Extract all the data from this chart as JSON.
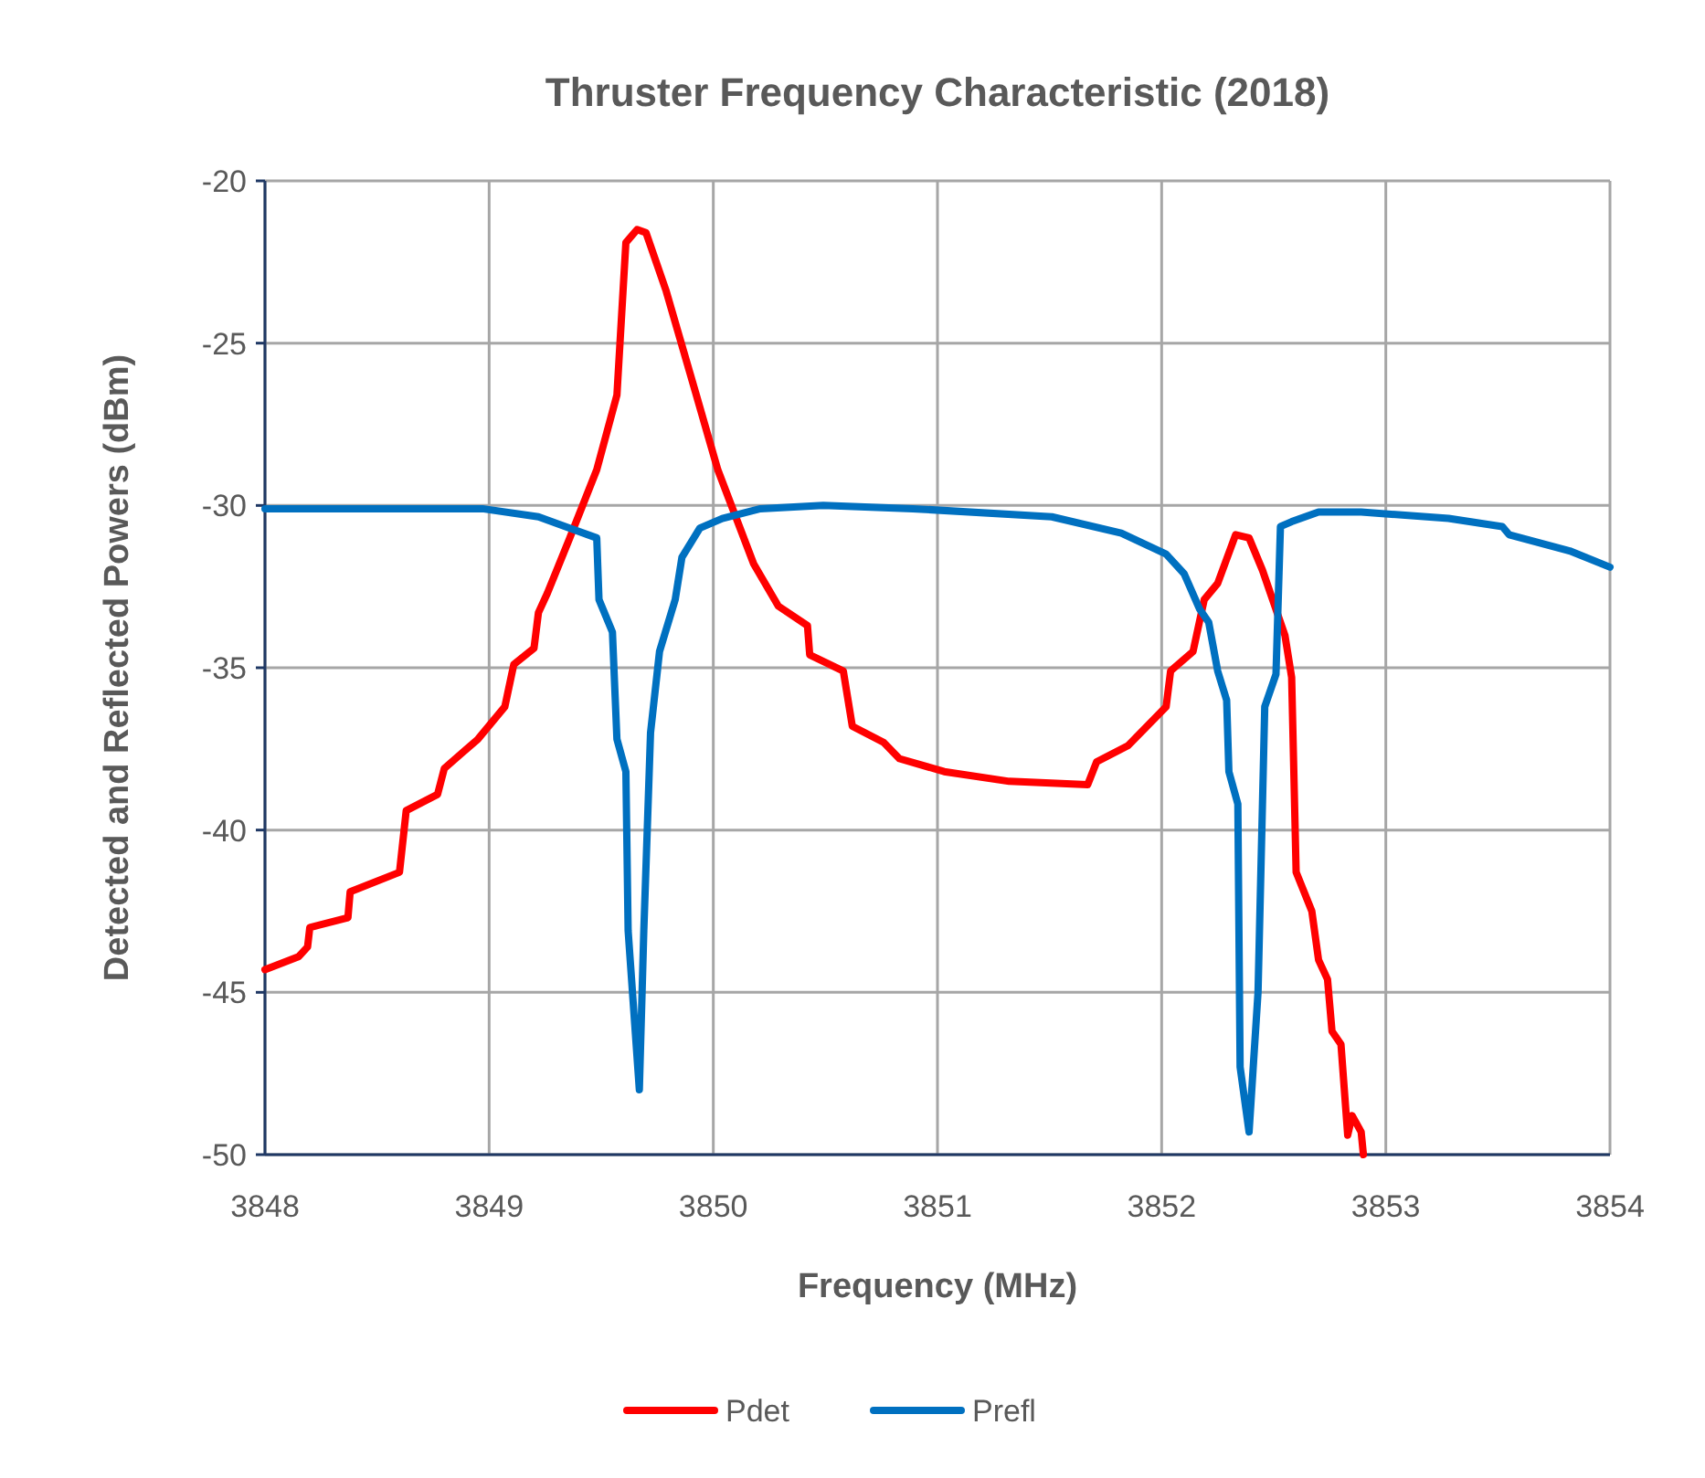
{
  "chart_data": {
    "type": "line",
    "title": "Thruster Frequency Characteristic (2018)",
    "xlabel": "Frequency (MHz)",
    "ylabel": "Detected and Reflected Powers (dBm)",
    "xlim": [
      3848,
      3854
    ],
    "xticks": [
      3848,
      3849,
      3850,
      3851,
      3852,
      3853,
      3854
    ],
    "ylim": [
      -50,
      -20
    ],
    "yticks": [
      -50,
      -45,
      -40,
      -35,
      -30,
      -25,
      -20
    ],
    "grid": true,
    "legend": "bottom",
    "marker": "none",
    "line_style": "solid",
    "series": [
      {
        "name": "Pdet",
        "color": "#ff0000",
        "x": [
          3848.0,
          3848.15,
          3848.19,
          3848.2,
          3848.37,
          3848.38,
          3848.6,
          3848.63,
          3848.77,
          3848.8,
          3848.95,
          3849.07,
          3849.11,
          3849.2,
          3849.22,
          3849.26,
          3849.36,
          3849.48,
          3849.57,
          3849.61,
          3849.66,
          3849.7,
          3849.79,
          3849.92,
          3850.02,
          3850.18,
          3850.29,
          3850.42,
          3850.43,
          3850.58,
          3850.62,
          3850.76,
          3850.83,
          3851.03,
          3851.32,
          3851.67,
          3851.71,
          3851.85,
          3852.02,
          3852.04,
          3852.14,
          3852.19,
          3852.25,
          3852.33,
          3852.39,
          3852.45,
          3852.55,
          3852.58,
          3852.6,
          3852.67,
          3852.7,
          3852.74,
          3852.76,
          3852.8,
          3852.83,
          3852.85,
          3852.89,
          3852.9
        ],
        "values": [
          -44.3,
          -43.9,
          -43.6,
          -43.0,
          -42.7,
          -41.9,
          -41.3,
          -39.4,
          -38.9,
          -38.1,
          -37.2,
          -36.2,
          -34.9,
          -34.4,
          -33.3,
          -32.7,
          -31.0,
          -28.9,
          -26.6,
          -21.9,
          -21.5,
          -21.6,
          -23.4,
          -26.5,
          -28.9,
          -31.8,
          -33.1,
          -33.7,
          -34.6,
          -35.1,
          -36.8,
          -37.3,
          -37.8,
          -38.2,
          -38.5,
          -38.6,
          -37.9,
          -37.4,
          -36.2,
          -35.1,
          -34.5,
          -32.9,
          -32.4,
          -30.9,
          -31.0,
          -32.0,
          -34.0,
          -35.3,
          -41.3,
          -42.5,
          -44.0,
          -44.6,
          -46.2,
          -46.6,
          -49.4,
          -48.8,
          -49.3,
          -50.0
        ]
      },
      {
        "name": "Prefl",
        "color": "#0070c0",
        "x": [
          3848.0,
          3848.97,
          3849.22,
          3849.36,
          3849.48,
          3849.49,
          3849.55,
          3849.57,
          3849.61,
          3849.62,
          3849.67,
          3849.69,
          3849.72,
          3849.76,
          3849.83,
          3849.86,
          3849.94,
          3850.04,
          3850.21,
          3850.49,
          3850.89,
          3851.51,
          3851.82,
          3852.02,
          3852.1,
          3852.17,
          3852.21,
          3852.25,
          3852.29,
          3852.3,
          3852.34,
          3852.35,
          3852.39,
          3852.43,
          3852.46,
          3852.51,
          3852.53,
          3852.58,
          3852.7,
          3852.89,
          3853.28,
          3853.52,
          3853.55,
          3853.82,
          3854.0
        ],
        "values": [
          -30.1,
          -30.1,
          -30.35,
          -30.7,
          -31.0,
          -32.9,
          -33.9,
          -37.2,
          -38.2,
          -43.1,
          -48.0,
          -43.1,
          -37.0,
          -34.5,
          -32.9,
          -31.6,
          -30.7,
          -30.4,
          -30.1,
          -30.0,
          -30.1,
          -30.35,
          -30.85,
          -31.5,
          -32.1,
          -33.2,
          -33.6,
          -35.1,
          -36.0,
          -38.2,
          -39.2,
          -47.3,
          -49.3,
          -45.0,
          -36.2,
          -35.2,
          -30.65,
          -30.5,
          -30.2,
          -30.2,
          -30.4,
          -30.65,
          -30.9,
          -31.4,
          -31.9
        ]
      }
    ]
  }
}
